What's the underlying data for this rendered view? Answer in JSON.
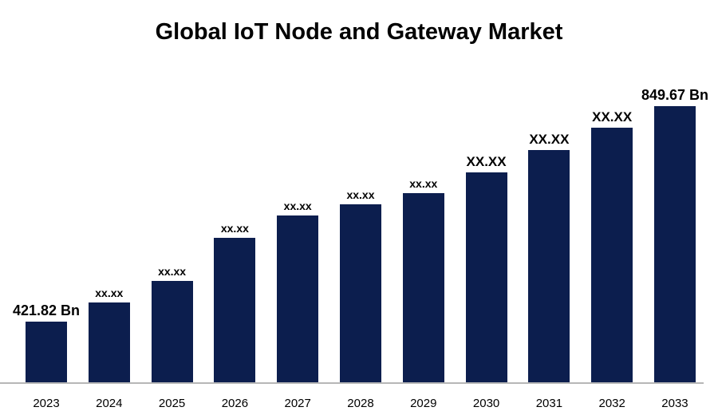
{
  "chart_data": {
    "type": "bar",
    "title": "Global IoT Node and Gateway Market",
    "categories": [
      "2023",
      "2024",
      "2025",
      "2026",
      "2027",
      "2028",
      "2029",
      "2030",
      "2031",
      "2032",
      "2033"
    ],
    "values": [
      421.82,
      460,
      502,
      588,
      632,
      655,
      677,
      718,
      763,
      806,
      849.67
    ],
    "bar_labels": [
      "421.82 Bn",
      "xx.xx",
      "xx.xx",
      "xx.xx",
      "xx.xx",
      "xx.xx",
      "xx.xx",
      "XX.XX",
      "XX.XX",
      "XX.XX",
      "849.67 Bn"
    ],
    "unit": "Bn",
    "bar_color": "#0c1e4e",
    "axis_line_color": "#b7b7b7",
    "ylim": [
      300,
      870
    ],
    "grid": false,
    "legend": false,
    "xlabel": "",
    "ylabel": ""
  }
}
